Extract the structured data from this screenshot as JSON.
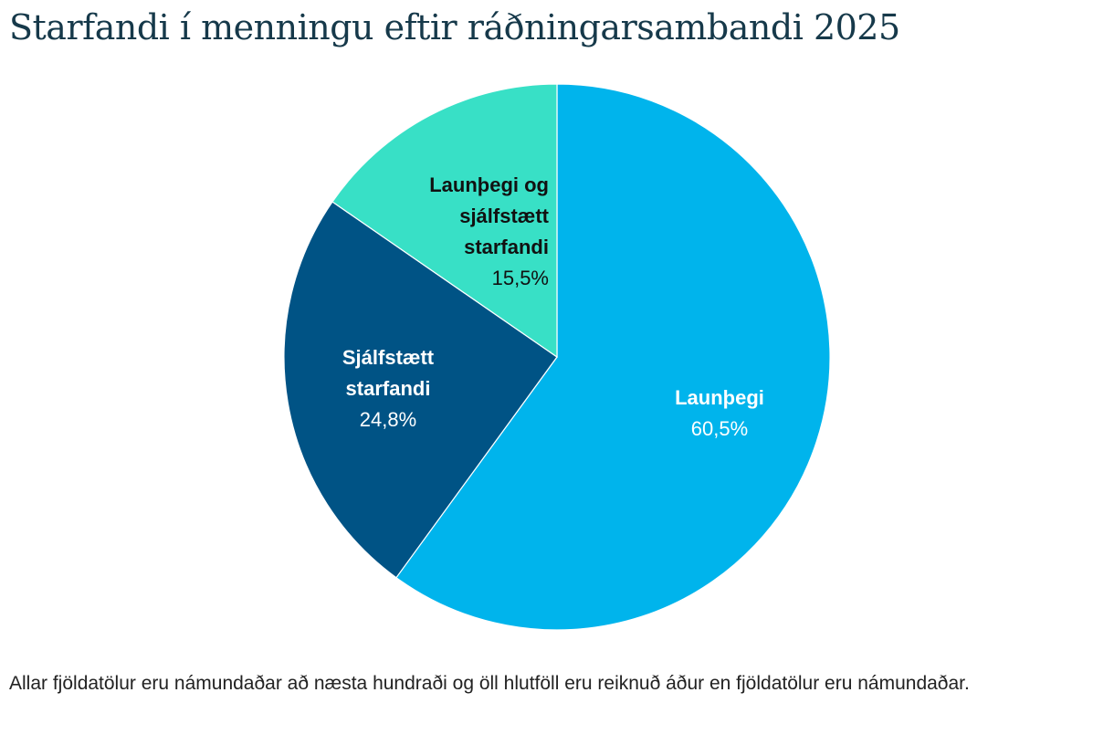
{
  "title": "Starfandi í menningu eftir ráðningarsambandi 2025",
  "footnote": "Allar fjöldatölur eru námundaðar að næsta hundraði og öll hlutföll eru reiknuð áður en fjöldatölur eru námundaðar.",
  "chart_data": {
    "type": "pie",
    "title": "Starfandi í menningu eftir ráðningarsambandi 2025",
    "start": "12 o'clock, clockwise",
    "slices": [
      {
        "label_lines": [
          "Launþegi"
        ],
        "value": 60.5,
        "value_label": "60,5%",
        "color": "#00b4ec",
        "label_color": "#ffffff"
      },
      {
        "label_lines": [
          "Sjálfstætt",
          "starfandi"
        ],
        "value": 24.8,
        "value_label": "24,8%",
        "color": "#005385",
        "label_color": "#ffffff"
      },
      {
        "label_lines": [
          "Launþegi og",
          "sjálfstætt",
          "starfandi"
        ],
        "value": 15.5,
        "value_label": "15,5%",
        "color": "#38e0c6",
        "label_color": "#111111"
      }
    ]
  }
}
